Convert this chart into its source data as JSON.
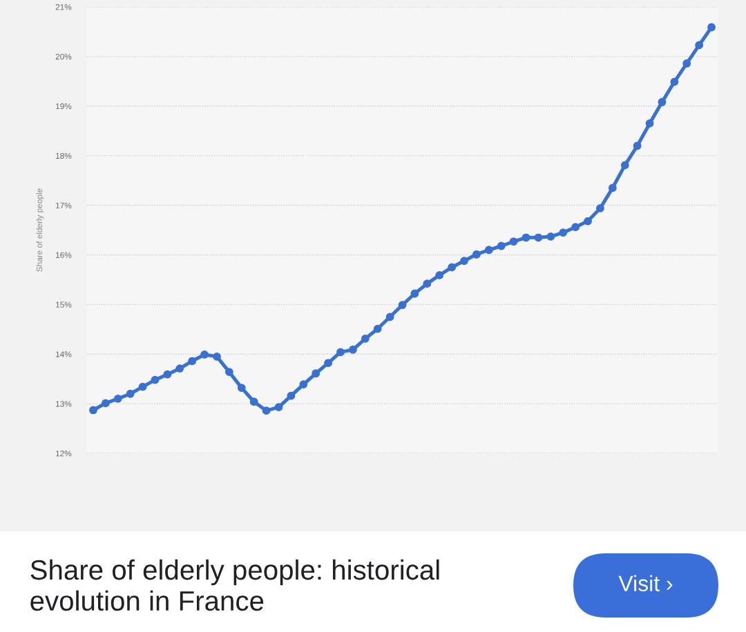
{
  "chart_data": {
    "type": "line",
    "title": "Share of elderly people: historical evolution in France",
    "ylabel": "Share of elderly people",
    "categories": [
      null,
      null,
      null,
      null,
      null,
      null,
      null,
      null,
      null,
      null,
      null,
      null,
      null,
      null,
      null,
      null,
      null,
      null,
      null,
      null,
      null,
      null,
      null,
      null,
      null,
      null,
      null,
      null,
      null,
      null,
      null,
      null,
      null,
      null,
      null,
      null,
      null,
      null,
      null,
      null,
      null,
      null,
      null,
      null,
      null,
      null,
      null,
      null,
      null,
      null,
      null
    ],
    "series": [
      {
        "color": "#3871d1",
        "values": [
          12.87,
          13.01,
          13.1,
          13.2,
          13.34,
          13.48,
          13.59,
          13.71,
          13.86,
          13.99,
          13.95,
          13.64,
          13.32,
          13.04,
          12.86,
          12.93,
          13.16,
          13.39,
          13.61,
          13.82,
          14.04,
          14.09,
          14.31,
          14.51,
          14.75,
          14.99,
          15.22,
          15.42,
          15.59,
          15.75,
          15.88,
          16.01,
          16.1,
          16.18,
          16.27,
          16.35,
          16.35,
          16.37,
          16.45,
          16.56,
          16.68,
          16.94,
          17.35,
          17.81,
          18.2,
          18.65,
          19.08,
          19.49,
          19.86,
          20.23,
          20.59
        ]
      }
    ],
    "ylim": [
      12,
      21
    ],
    "yticks": [
      {
        "value": 12,
        "label": "12%"
      },
      {
        "value": 13,
        "label": "13%"
      },
      {
        "value": 14,
        "label": "14%"
      },
      {
        "value": 15,
        "label": "15%"
      },
      {
        "value": 16,
        "label": "16%"
      },
      {
        "value": 17,
        "label": "17%"
      },
      {
        "value": 18,
        "label": "18%"
      },
      {
        "value": 19,
        "label": "19%"
      },
      {
        "value": 20,
        "label": "20%"
      },
      {
        "value": 21,
        "label": "21%"
      }
    ],
    "grid": "y",
    "tick_labels": "y",
    "marker": "circle",
    "line_style": "solid",
    "annotations": [
      "Visit ›"
    ]
  }
}
